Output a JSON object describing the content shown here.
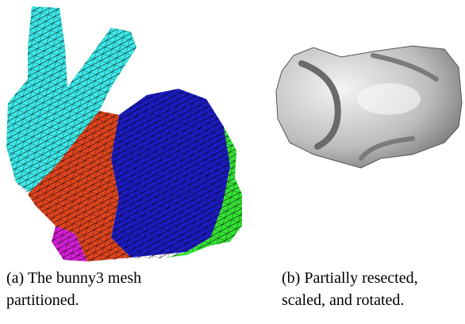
{
  "figure": {
    "subfigures": [
      {
        "caption_lines": [
          "(a) The bunny3 mesh",
          "partitioned."
        ]
      },
      {
        "caption_lines": [
          "(b) Partially resected,",
          "scaled, and rotated."
        ]
      }
    ]
  }
}
